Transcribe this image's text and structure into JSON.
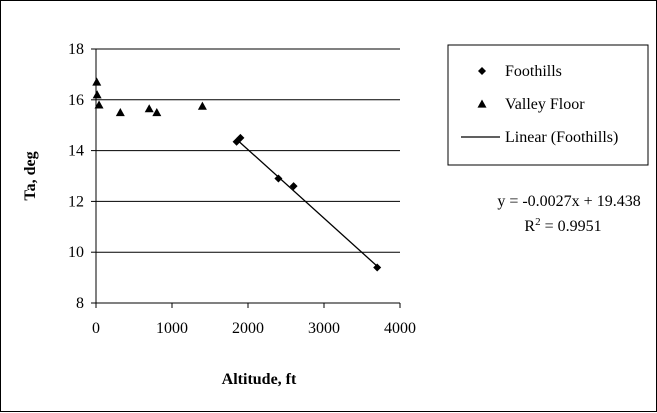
{
  "chart_data": {
    "type": "scatter",
    "xlabel": "Altitude, ft",
    "ylabel": "Ta, deg",
    "xlim": [
      0,
      4000
    ],
    "ylim": [
      8,
      18
    ],
    "xticks": [
      "0",
      "1000",
      "2000",
      "3000",
      "4000"
    ],
    "yticks": [
      "8",
      "10",
      "12",
      "14",
      "16",
      "18"
    ],
    "grid": "horizontal major gridlines",
    "legend_position": "right",
    "series": [
      {
        "name": "Foothills",
        "marker": "diamond",
        "color": "#000000",
        "points": [
          {
            "x": 1850,
            "y": 14.35
          },
          {
            "x": 1900,
            "y": 14.5
          },
          {
            "x": 2400,
            "y": 12.9
          },
          {
            "x": 2600,
            "y": 12.6
          },
          {
            "x": 3700,
            "y": 9.4
          }
        ]
      },
      {
        "name": "Valley Floor",
        "marker": "triangle",
        "color": "#000000",
        "points": [
          {
            "x": 10,
            "y": 16.7
          },
          {
            "x": 15,
            "y": 16.2
          },
          {
            "x": 40,
            "y": 15.8
          },
          {
            "x": 320,
            "y": 15.5
          },
          {
            "x": 700,
            "y": 15.65
          },
          {
            "x": 800,
            "y": 15.5
          },
          {
            "x": 1400,
            "y": 15.75
          }
        ]
      }
    ],
    "trendline": {
      "name": "Linear (Foothills)",
      "slope": -0.0027,
      "intercept": 19.438,
      "x_range": [
        1850,
        3700
      ],
      "equation": "y = -0.0027x + 19.438",
      "r2_prefix": "R",
      "r2_exp": "2",
      "r2_value": " = 0.9951"
    }
  }
}
